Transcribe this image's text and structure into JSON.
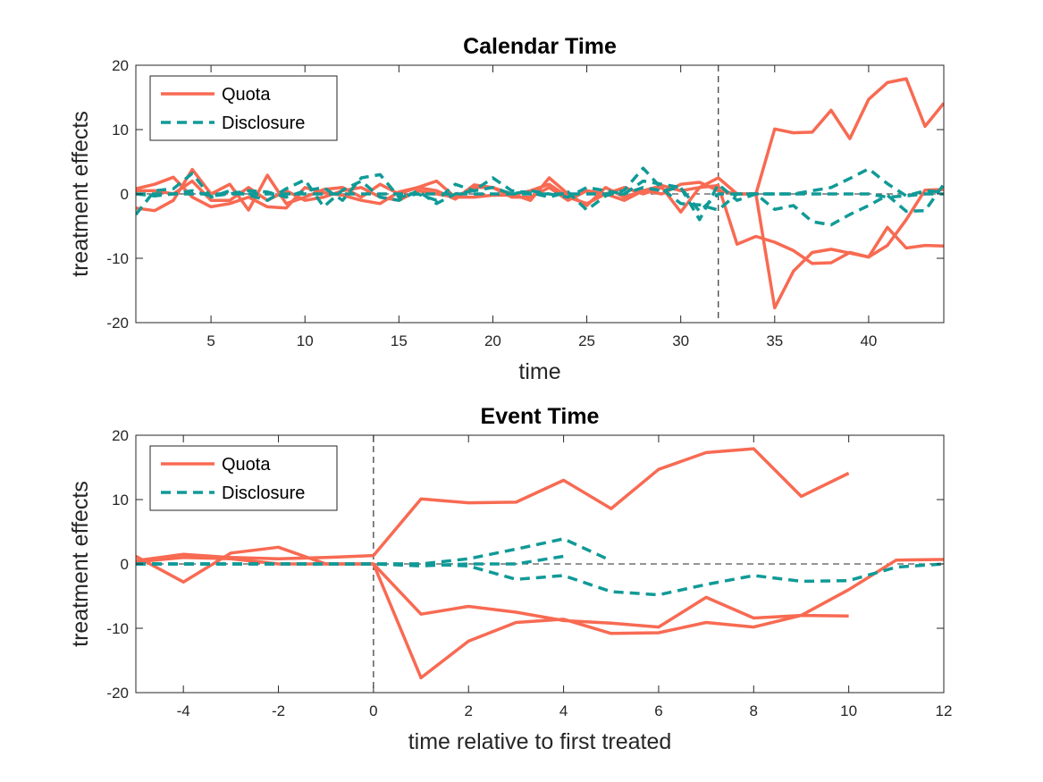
{
  "colors": {
    "quota": "#f86a52",
    "disclosure": "#109a97",
    "axis": "#262626",
    "ref": "#555555"
  },
  "legend": [
    "Quota",
    "Disclosure"
  ],
  "chart_data": [
    {
      "type": "line",
      "title": "Calendar Time",
      "xlabel": "time",
      "ylabel": "treatment effects",
      "xlim": [
        1,
        44
      ],
      "ylim": [
        -20,
        20
      ],
      "xticks": [
        5,
        10,
        15,
        20,
        25,
        30,
        35,
        40
      ],
      "yticks": [
        -20,
        -10,
        0,
        10,
        20
      ],
      "vline": 32,
      "hline": 0,
      "legend_position": "top-left",
      "series": [
        {
          "name": "Quota",
          "style": "solid",
          "x": [
            1,
            2,
            3,
            4,
            5,
            6,
            7,
            8,
            9,
            10,
            11,
            12,
            13,
            14,
            15,
            16,
            17,
            18,
            19,
            20,
            21,
            22,
            23,
            24,
            25,
            26,
            27,
            28,
            29,
            30,
            31,
            32,
            33,
            34,
            35,
            36,
            37,
            38,
            39,
            40,
            41,
            42,
            43,
            44
          ],
          "y": [
            0.8,
            1.5,
            2.6,
            -0.5,
            -2,
            -1.5,
            -0.5,
            -2,
            -2.2,
            1,
            0.2,
            -0.2,
            -1,
            -1.5,
            0.3,
            1,
            0.5,
            -0.8,
            1.4,
            1,
            0,
            -1,
            2.5,
            0,
            -1.8,
            1,
            -0.5,
            0.5,
            1.3,
            0.5,
            1,
            2.5,
            0,
            0,
            10.1,
            9.5,
            9.6,
            13,
            8.6,
            14.7,
            17.3,
            17.9,
            10.5,
            14.1
          ]
        },
        {
          "name": "Quota",
          "style": "solid",
          "x": [
            1,
            2,
            3,
            4,
            5,
            6,
            7,
            8,
            9,
            10,
            11,
            12,
            13,
            14,
            15,
            16,
            17,
            18,
            19,
            20,
            21,
            22,
            23,
            24,
            25,
            26,
            27,
            28,
            29,
            30,
            31,
            32,
            33,
            34,
            35,
            36,
            37,
            38,
            39,
            40,
            41,
            42,
            43,
            44
          ],
          "y": [
            -2.2,
            -2.6,
            -1,
            3.8,
            0,
            1.5,
            -2.5,
            2.9,
            -1.5,
            -0.5,
            0.7,
            1,
            -0.5,
            1.5,
            0,
            1,
            2,
            -0.5,
            -0.5,
            -0.2,
            -0.2,
            0.5,
            1.5,
            -0.5,
            -1.5,
            0,
            1,
            0,
            1,
            -2.8,
            1,
            1.3,
            -7.8,
            -6.6,
            -7.5,
            -8.8,
            -10.8,
            -10.7,
            -9.1,
            -9.8,
            -5.2,
            -8.4,
            -8,
            -8.1
          ]
        },
        {
          "name": "Quota",
          "style": "solid",
          "x": [
            1,
            2,
            3,
            4,
            5,
            6,
            7,
            8,
            9,
            10,
            11,
            12,
            13,
            14,
            15,
            16,
            17,
            18,
            19,
            20,
            21,
            22,
            23,
            24,
            25,
            26,
            27,
            28,
            29,
            30,
            31,
            32,
            33,
            34,
            35,
            36,
            37,
            38,
            39,
            40,
            41,
            42,
            43,
            44
          ],
          "y": [
            0.5,
            0.5,
            0,
            2,
            -1,
            -1,
            1,
            -1,
            0.5,
            -1,
            -0.5,
            0.5,
            1,
            -0.5,
            -1,
            0.5,
            0,
            -0.5,
            1,
            1,
            -0.5,
            -0.5,
            1,
            -1,
            0.5,
            0,
            -1,
            0.5,
            0,
            1.5,
            1.8,
            0.5,
            0,
            0,
            -17.7,
            -12,
            -9.1,
            -8.6,
            -9.2,
            -9.8,
            -8,
            -4,
            0.6,
            0.7
          ]
        },
        {
          "name": "Disclosure",
          "style": "dashed",
          "x": [
            1,
            2,
            3,
            4,
            5,
            6,
            7,
            8,
            9,
            10,
            11,
            12,
            13,
            14,
            15,
            16,
            17,
            18,
            19,
            20,
            21,
            22,
            23,
            24,
            25,
            26,
            27,
            28,
            29,
            30,
            31,
            32,
            33,
            34,
            35,
            36,
            37,
            38,
            39,
            40,
            41,
            42,
            43,
            44
          ],
          "y": [
            -3.2,
            0.5,
            0.8,
            3.2,
            -0.5,
            0.5,
            -0.2,
            -1,
            0.8,
            2.2,
            -2,
            0.6,
            2,
            -0.5,
            -1,
            0.5,
            -1.5,
            0,
            0.5,
            2.5,
            0.5,
            0.2,
            -0.5,
            0.3,
            -2.5,
            -0.3,
            0.6,
            4,
            0.8,
            -1.5,
            -1.7,
            -2.5,
            0,
            0,
            0,
            0,
            0.5,
            1,
            2.4,
            3.9,
            1.6,
            -0.3,
            0.5,
            0.3
          ]
        },
        {
          "name": "Disclosure",
          "style": "dashed",
          "x": [
            1,
            2,
            3,
            4,
            5,
            6,
            7,
            8,
            9,
            10,
            11,
            12,
            13,
            14,
            15,
            16,
            17,
            18,
            19,
            20,
            21,
            22,
            23,
            24,
            25,
            26,
            27,
            28,
            29,
            30,
            31,
            32,
            33,
            34,
            35,
            36,
            37,
            38,
            39,
            40,
            41,
            42,
            43,
            44
          ],
          "y": [
            0,
            -0.3,
            0,
            0.5,
            -0.3,
            0,
            0.5,
            0.3,
            -0.5,
            0.5,
            1,
            -1,
            2.5,
            3,
            -0.5,
            0,
            -1,
            1.5,
            0.5,
            1,
            0,
            0.5,
            0,
            -0.5,
            1,
            0.5,
            0,
            2,
            1.5,
            1,
            -2.7,
            0,
            0,
            0,
            -2.4,
            -1.8,
            -4.3,
            -4.8,
            -3.2,
            -1.8,
            -0.2,
            -2.7,
            -2.6,
            1.5
          ]
        },
        {
          "name": "Disclosure",
          "style": "dashed",
          "x": [
            1,
            2,
            3,
            4,
            5,
            6,
            7,
            8,
            9,
            10,
            11,
            12,
            13,
            14,
            15,
            16,
            17,
            18,
            19,
            20,
            21,
            22,
            23,
            24,
            25,
            26,
            27,
            28,
            29,
            30,
            31,
            32,
            33,
            34,
            35,
            36,
            37,
            38,
            39,
            40,
            41,
            42,
            43,
            44
          ],
          "y": [
            0,
            0,
            0,
            0,
            0,
            0,
            0,
            0,
            0,
            0,
            0,
            0,
            0,
            0,
            0,
            0,
            0,
            0,
            0,
            0,
            0,
            0,
            0,
            0,
            0,
            0,
            0,
            1,
            0.5,
            1,
            -4,
            1.5,
            -1,
            0,
            0,
            0,
            0,
            0,
            0,
            0,
            -0.5,
            -0.3,
            0,
            0
          ]
        }
      ]
    },
    {
      "type": "line",
      "title": "Event Time",
      "xlabel": "time relative to first treated",
      "ylabel": "treatment effects",
      "xlim": [
        -5,
        12
      ],
      "ylim": [
        -20,
        20
      ],
      "xticks": [
        -4,
        -2,
        0,
        2,
        4,
        6,
        8,
        10,
        12
      ],
      "yticks": [
        -20,
        -10,
        0,
        10,
        20
      ],
      "vline": 0,
      "hline": 0,
      "legend_position": "top-left",
      "series": [
        {
          "name": "Quota",
          "style": "solid",
          "x": [
            -5,
            -4,
            -3,
            -2,
            -1,
            0,
            1,
            2,
            3,
            4,
            5,
            6,
            7,
            8,
            9,
            10
          ],
          "y": [
            0.5,
            1.5,
            1,
            0.8,
            1,
            1.3,
            10.1,
            9.5,
            9.6,
            13,
            8.6,
            14.7,
            17.3,
            17.9,
            10.5,
            14.1
          ]
        },
        {
          "name": "Quota",
          "style": "solid",
          "x": [
            -5,
            -4,
            -3,
            -2,
            -1,
            0,
            1,
            2,
            3,
            4,
            5,
            6,
            7,
            8,
            9,
            10
          ],
          "y": [
            1.2,
            -2.8,
            1.7,
            2.6,
            0,
            0,
            -7.8,
            -6.6,
            -7.5,
            -8.8,
            -9.2,
            -9.8,
            -5.2,
            -8.4,
            -8,
            -8.1
          ]
        },
        {
          "name": "Quota",
          "style": "solid",
          "x": [
            -5,
            -4,
            -3,
            -2,
            -1,
            0,
            1,
            2,
            3,
            4,
            5,
            6,
            7,
            8,
            9,
            10,
            11,
            12
          ],
          "y": [
            0.3,
            1,
            0.8,
            0,
            0,
            0,
            -17.7,
            -12,
            -9.1,
            -8.6,
            -10.8,
            -10.7,
            -9.1,
            -9.8,
            -8,
            -4,
            0.6,
            0.7
          ]
        },
        {
          "name": "Disclosure",
          "style": "dashed",
          "x": [
            -5,
            -4,
            -3,
            -2,
            -1,
            0,
            1,
            2,
            3,
            4,
            5
          ],
          "y": [
            0,
            0,
            0,
            0,
            0,
            0,
            0,
            0.8,
            2.3,
            3.9,
            0.5
          ]
        },
        {
          "name": "Disclosure",
          "style": "dashed",
          "x": [
            -5,
            -4,
            -3,
            -2,
            -1,
            0,
            1,
            2,
            3,
            4,
            5,
            6,
            7,
            8,
            9,
            10,
            11,
            12
          ],
          "y": [
            0,
            0,
            0,
            0,
            0,
            0,
            0,
            -0.3,
            -2.4,
            -1.8,
            -4.3,
            -4.8,
            -3.2,
            -1.8,
            -2.7,
            -2.6,
            -0.5,
            0
          ]
        },
        {
          "name": "Disclosure",
          "style": "dashed",
          "x": [
            -5,
            -4,
            -3,
            -2,
            -1,
            0,
            1,
            2,
            3,
            4
          ],
          "y": [
            0,
            0,
            0,
            0,
            0,
            0,
            -0.3,
            0,
            0,
            1.2
          ]
        }
      ]
    }
  ]
}
